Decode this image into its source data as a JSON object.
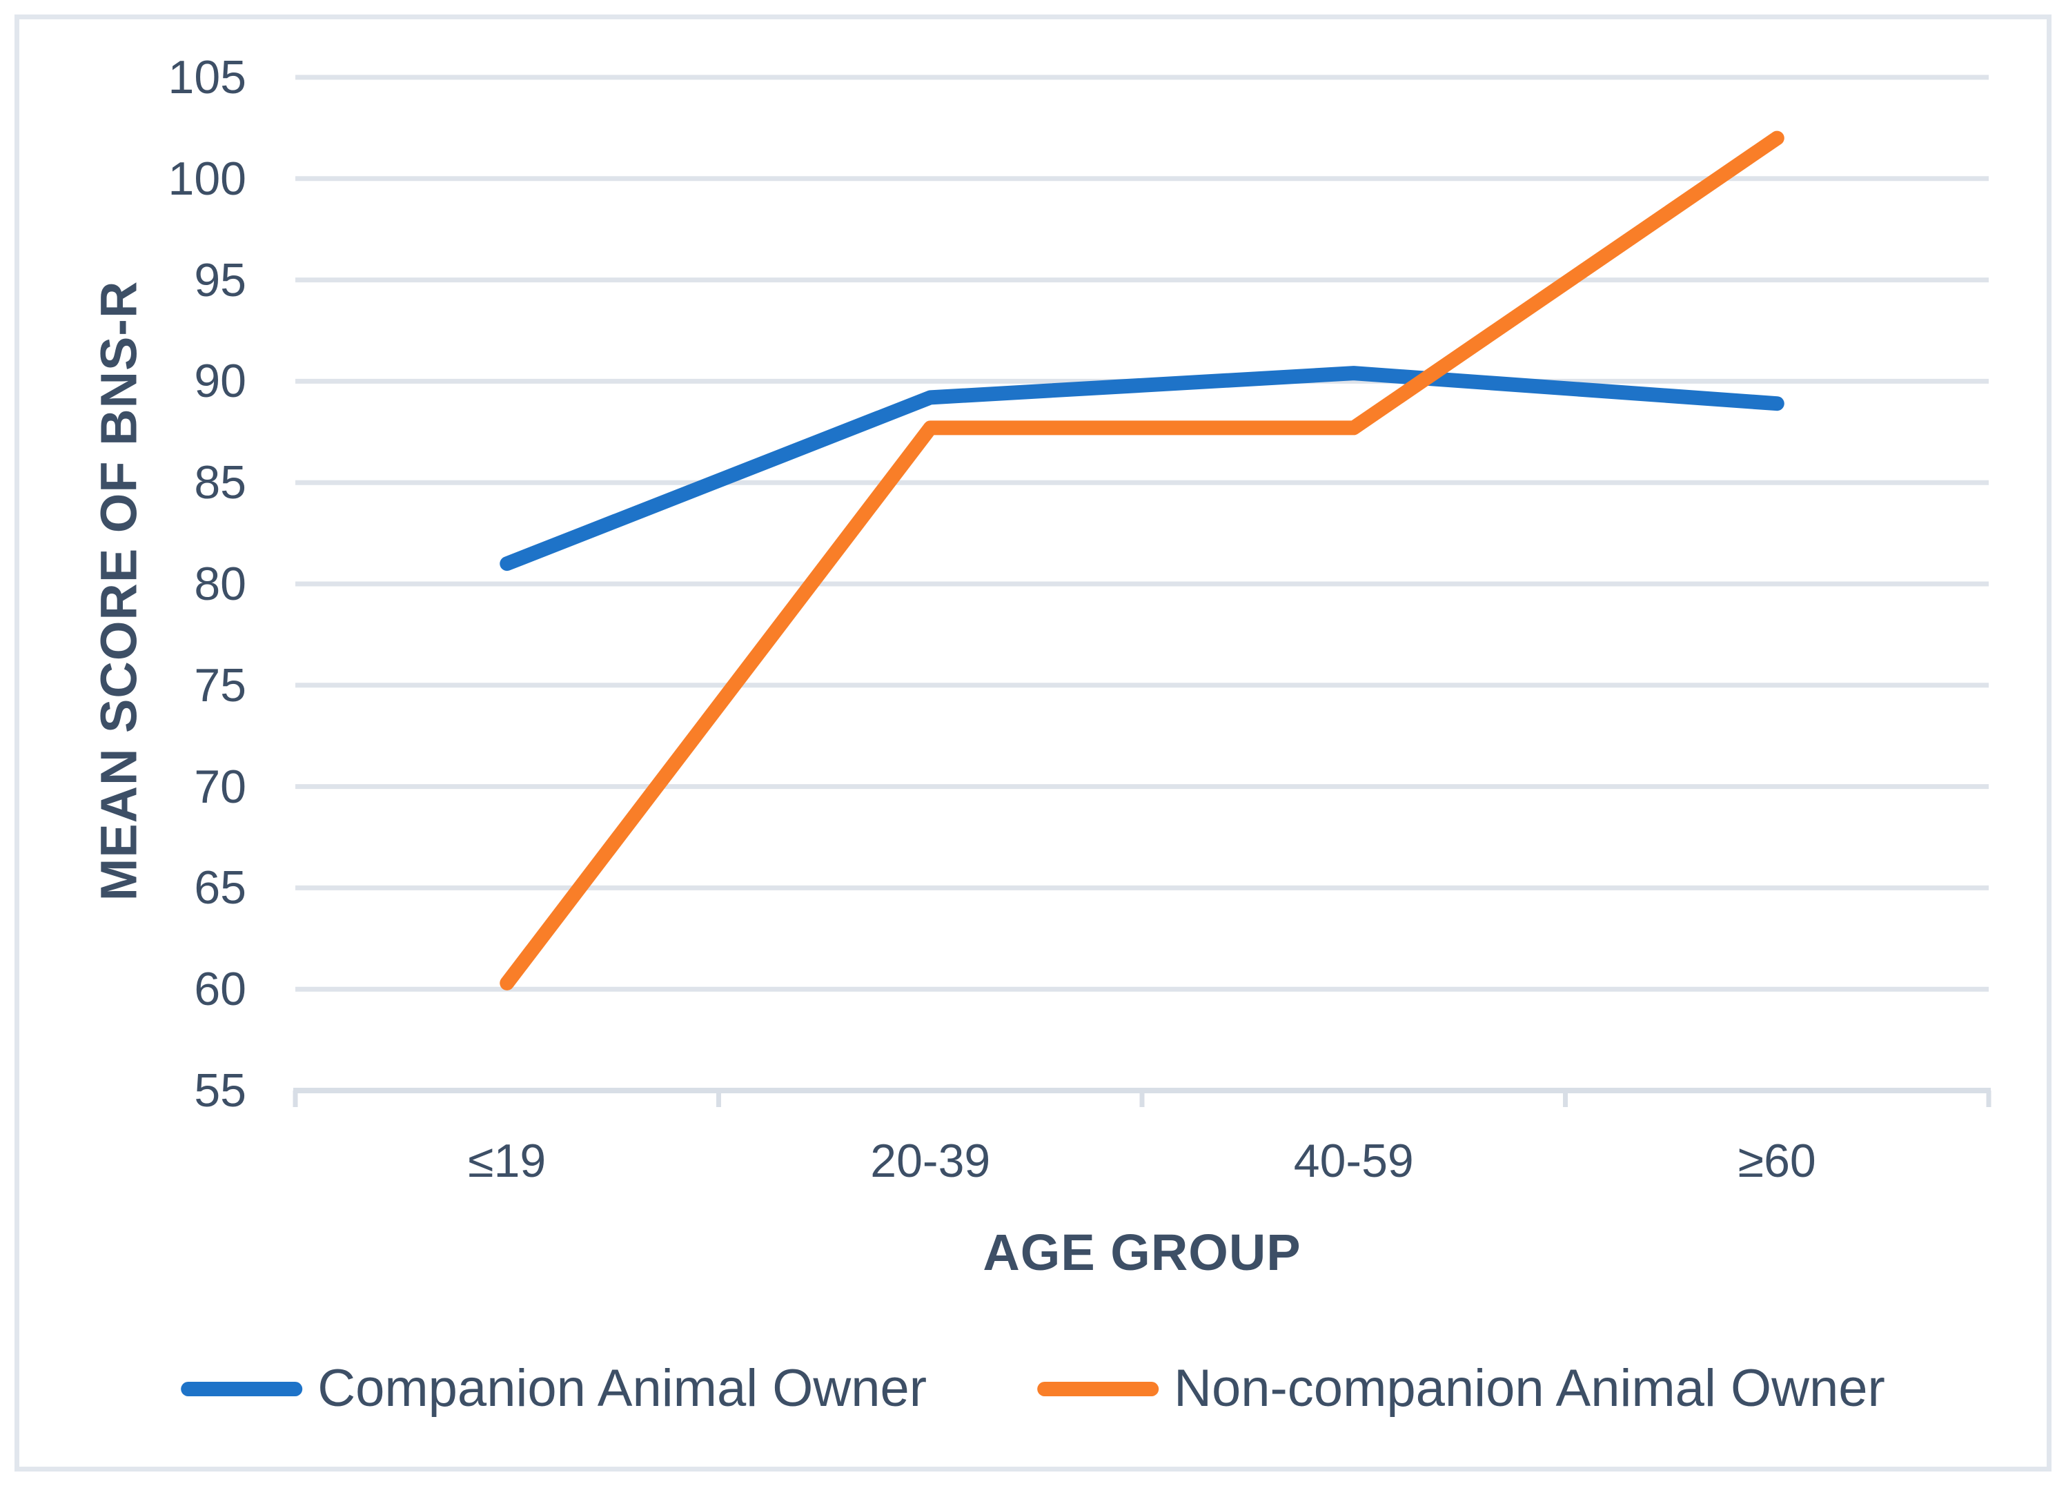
{
  "chart_data": {
    "type": "line",
    "categories": [
      "≤19",
      "20-39",
      "40-59",
      "≥60"
    ],
    "series": [
      {
        "name": "Companion Animal Owner",
        "color": "#1E73C8",
        "values": [
          81.0,
          89.2,
          90.4,
          88.9
        ]
      },
      {
        "name": "Non-companion Animal Owner",
        "color": "#F97E28",
        "values": [
          60.3,
          87.7,
          87.7,
          102.0
        ]
      }
    ],
    "xlabel": "AGE GROUP",
    "ylabel": "MEAN SCORE OF BNS-R",
    "ylim": [
      55,
      105
    ],
    "ytick_step": 5,
    "ytick_labels": [
      "55",
      "60",
      "65",
      "70",
      "75",
      "80",
      "85",
      "90",
      "95",
      "100",
      "105"
    ],
    "grid": "horizontal",
    "legend_position": "bottom",
    "line_width": 21,
    "colors": {
      "text": "#3D4F66",
      "gridline": "#DEE3EA",
      "axis": "#D8DEE6",
      "figure_border": "#E1E6ED",
      "background": "#FFFFFF"
    }
  }
}
